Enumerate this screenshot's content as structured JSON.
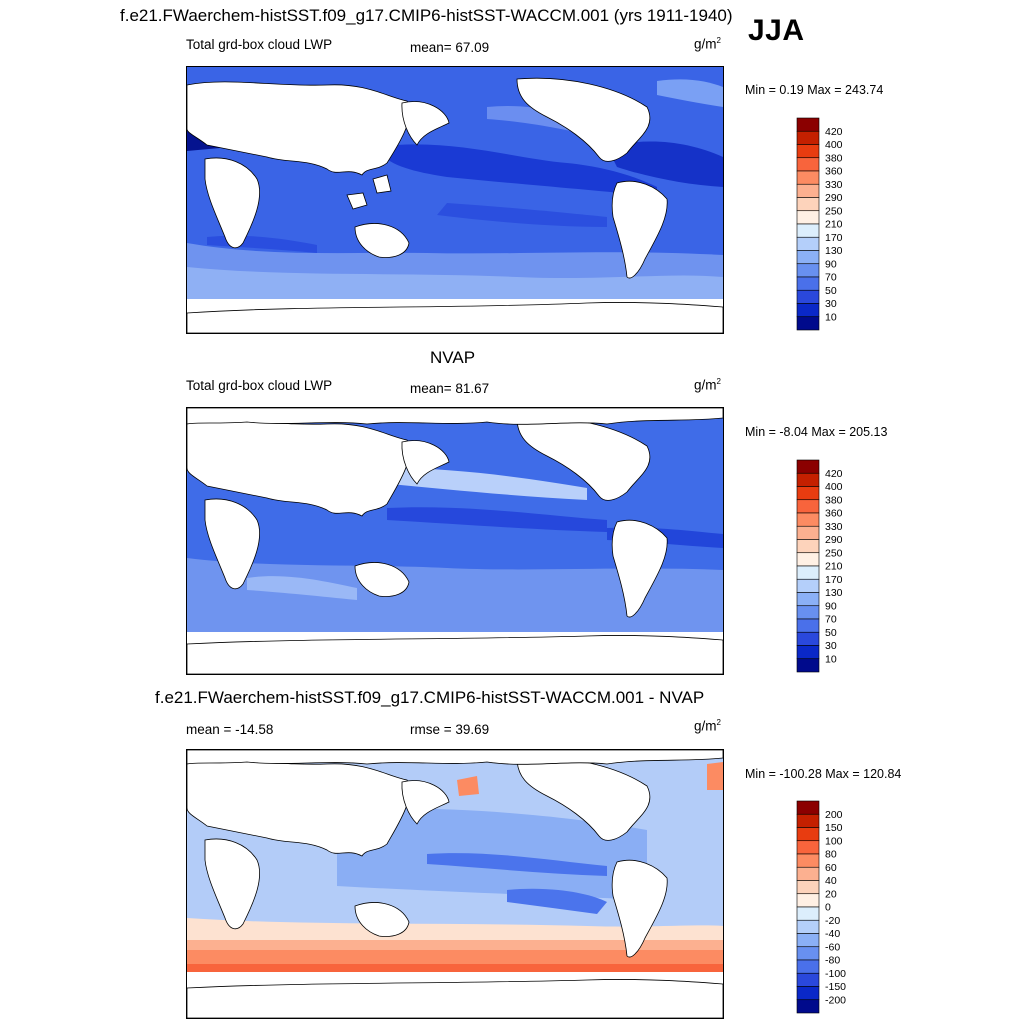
{
  "figure": {
    "season": "JJA"
  },
  "chart_data": [
    {
      "type": "heatmap",
      "title": "f.e21.FWaerchem-histSST.f09_g17.CMIP6-histSST-WACCM.001 (yrs 1911-1940)",
      "variable": "Total grd-box cloud LWP",
      "mean_text": "mean=  67.09",
      "units": "g/m",
      "units_exp": "2",
      "minmax_text": "Min =   0.19 Max = 243.74",
      "min": 0.19,
      "max": 243.74,
      "mean": 67.09,
      "colorbar_levels": [
        "420",
        "400",
        "380",
        "360",
        "330",
        "290",
        "250",
        "210",
        "170",
        "130",
        "90",
        "70",
        "50",
        "30",
        "10"
      ],
      "colorbar_colors": [
        "#8b0000",
        "#c42000",
        "#e83c10",
        "#f8643c",
        "#fc8b62",
        "#fcb090",
        "#fdd3bb",
        "#fff0e4",
        "#dceefc",
        "#b4cffa",
        "#8bb0f6",
        "#6890f0",
        "#4a70ea",
        "#2a48dc",
        "#0a28c8",
        "#000a8c"
      ]
    },
    {
      "type": "heatmap",
      "title": "NVAP",
      "variable": "Total grd-box cloud LWP",
      "mean_text": "mean=  81.67",
      "units": "g/m",
      "units_exp": "2",
      "minmax_text": "Min =  -8.04 Max = 205.13",
      "min": -8.04,
      "max": 205.13,
      "mean": 81.67,
      "colorbar_levels": [
        "420",
        "400",
        "380",
        "360",
        "330",
        "290",
        "250",
        "210",
        "170",
        "130",
        "90",
        "70",
        "50",
        "30",
        "10"
      ],
      "colorbar_colors": [
        "#8b0000",
        "#c42000",
        "#e83c10",
        "#f8643c",
        "#fc8b62",
        "#fcb090",
        "#fdd3bb",
        "#fff0e4",
        "#dceefc",
        "#b4cffa",
        "#8bb0f6",
        "#6890f0",
        "#4a70ea",
        "#2a48dc",
        "#0a28c8",
        "#000a8c"
      ]
    },
    {
      "type": "heatmap",
      "title": "f.e21.FWaerchem-histSST.f09_g17.CMIP6-histSST-WACCM.001 - NVAP",
      "variable": "mean = -14.58",
      "mean_text": "rmse =  39.69",
      "units": "g/m",
      "units_exp": "2",
      "minmax_text": "Min = -100.28 Max = 120.84",
      "min": -100.28,
      "max": 120.84,
      "mean": -14.58,
      "rmse": 39.69,
      "colorbar_levels": [
        "200",
        "150",
        "100",
        "80",
        "60",
        "40",
        "20",
        "0",
        "-20",
        "-40",
        "-60",
        "-80",
        "-100",
        "-150",
        "-200"
      ],
      "colorbar_colors": [
        "#8b0000",
        "#c42000",
        "#e83c10",
        "#f8643c",
        "#fc8b62",
        "#fcb090",
        "#fdd3bb",
        "#fff0e4",
        "#dceefc",
        "#b4cffa",
        "#8bb0f6",
        "#6890f0",
        "#4a70ea",
        "#2a48dc",
        "#0a28c8",
        "#000a8c"
      ]
    }
  ]
}
